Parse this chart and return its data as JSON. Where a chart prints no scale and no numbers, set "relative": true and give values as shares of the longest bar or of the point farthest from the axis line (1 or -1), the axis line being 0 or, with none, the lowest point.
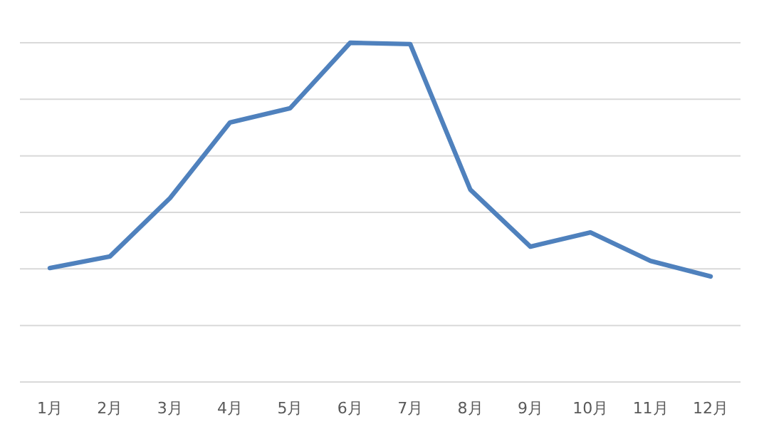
{
  "chart_data": {
    "type": "line",
    "relative": true,
    "grid": "y",
    "marker": "none",
    "line_style": "solid",
    "categories": [
      "1月",
      "2月",
      "3月",
      "4月",
      "5月",
      "6月",
      "7月",
      "8月",
      "9月",
      "10月",
      "11月",
      "12月"
    ],
    "series": [
      {
        "color": "#4f81bd",
        "values": [
          0.336,
          0.37,
          0.542,
          0.765,
          0.807,
          1,
          0.996,
          0.567,
          0.399,
          0.441,
          0.357,
          0.311
        ]
      }
    ]
  }
}
